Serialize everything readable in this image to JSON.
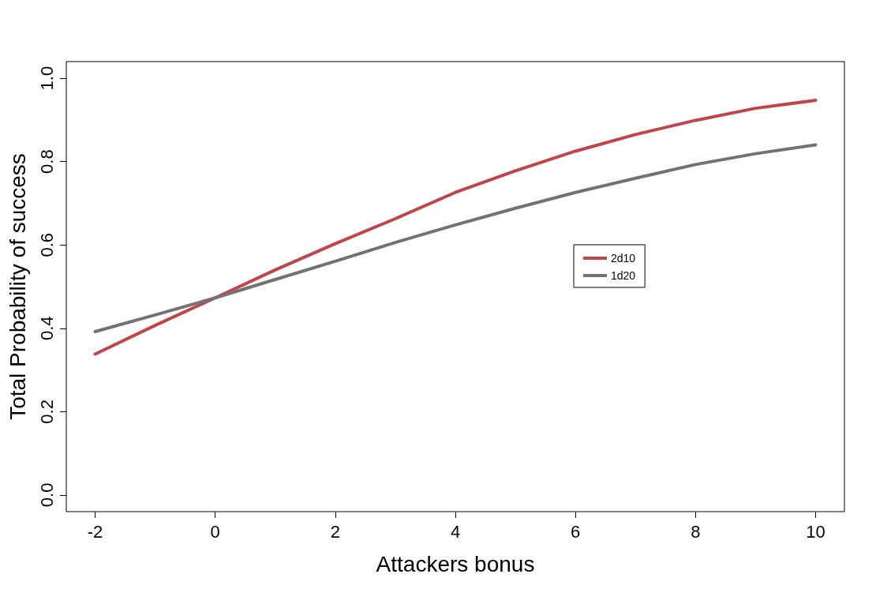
{
  "chart_data": {
    "type": "line",
    "xlabel": "Attackers bonus",
    "ylabel": "Total Probability of success",
    "x": [
      -2,
      -1,
      0,
      1,
      2,
      3,
      4,
      5,
      6,
      7,
      8,
      9,
      10
    ],
    "series": [
      {
        "name": "2d10",
        "color": "#c0444a",
        "values": [
          0.338,
          0.407,
          0.473,
          0.54,
          0.603,
          0.663,
          0.726,
          0.778,
          0.825,
          0.865,
          0.899,
          0.928,
          0.947
        ]
      },
      {
        "name": "1d20",
        "color": "#767170",
        "values": [
          0.392,
          0.432,
          0.473,
          0.517,
          0.561,
          0.606,
          0.648,
          0.688,
          0.726,
          0.76,
          0.793,
          0.819,
          0.84
        ]
      }
    ],
    "xlim": [
      -2.48,
      10.48
    ],
    "xticks": [
      -2,
      0,
      2,
      4,
      6,
      8,
      10
    ],
    "ylim": [
      -0.04,
      1.04
    ],
    "yticks": [
      {
        "value": 0,
        "label": "0.0"
      },
      0.2,
      0.4,
      0.6,
      0.8,
      {
        "value": 1,
        "label": "1.0"
      }
    ],
    "grid": false,
    "legend": "right",
    "marker": "none",
    "line_style": "solid"
  }
}
